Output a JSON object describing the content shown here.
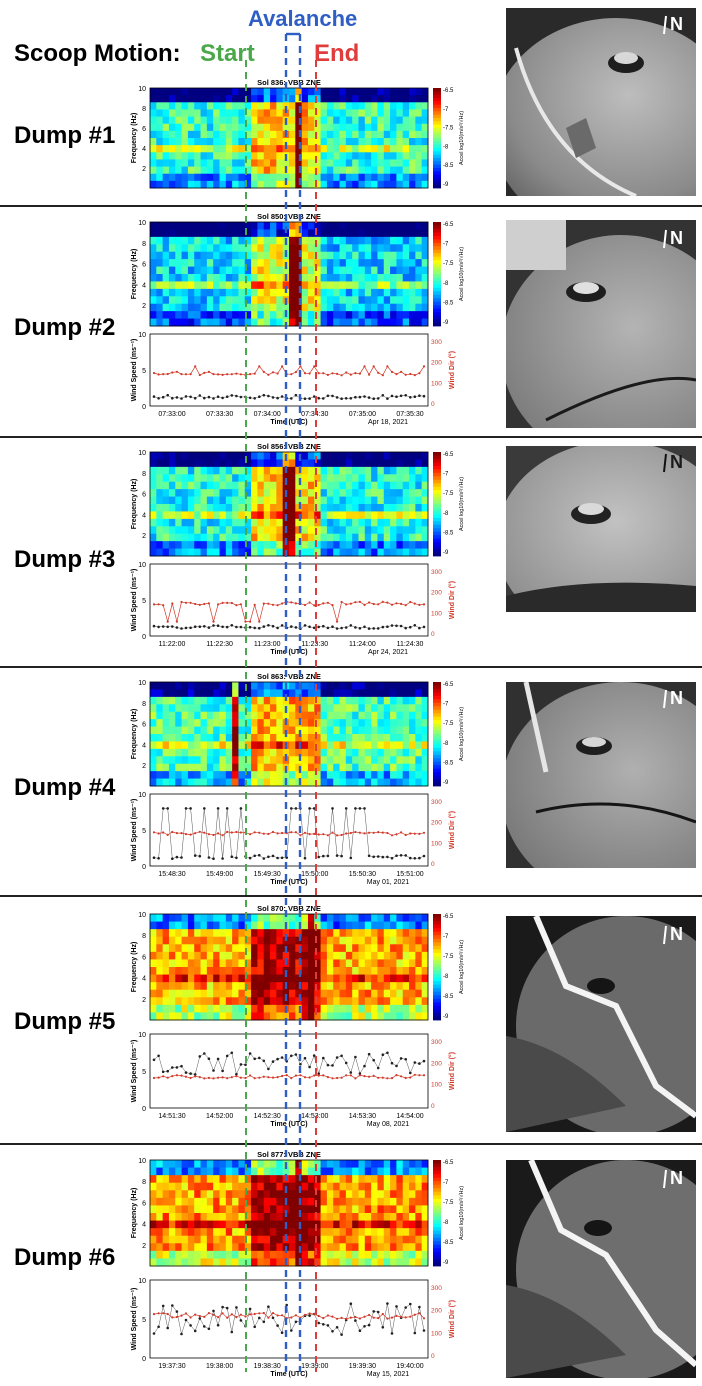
{
  "header": {
    "scoop_motion": "Scoop Motion:",
    "start": "Start",
    "avalanche": "Avalanche",
    "end": "End",
    "start_color": "#4aa84a",
    "avalanche_color": "#2f5fc4",
    "end_color": "#e03c3c"
  },
  "labels": {
    "frequency": "Frequency (Hz)",
    "accel": "Accel log10(m/s²/√Hz)",
    "wind_speed": "Wind Speed (ms⁻¹)",
    "wind_dir": "Wind Dir (°)",
    "time": "Time (UTC)"
  },
  "chart_data": {
    "type": "heatmap",
    "colorbar_ticks": [
      "-6.5",
      "-7",
      "-7.5",
      "-8",
      "-8.5",
      "-9"
    ],
    "freq_ticks": [
      "10",
      "8",
      "6",
      "4",
      "2"
    ],
    "wind_speed_ticks": [
      "10",
      "5",
      "0"
    ],
    "wind_dir_ticks": [
      "300",
      "200",
      "100",
      "0"
    ],
    "north_label": "N",
    "panels": [
      {
        "dump": "Dump #1",
        "title": "Sol 836: VBB ZNE",
        "has_wind": false,
        "time_ticks": [],
        "date": ""
      },
      {
        "dump": "Dump #2",
        "title": "Sol 850: VBB ZNE",
        "has_wind": true,
        "time_ticks": [
          "07:33:00",
          "07:33:30",
          "07:34:00",
          "07:34:30",
          "07:35:00",
          "07:35:30"
        ],
        "date": "Apr 18, 2021"
      },
      {
        "dump": "Dump #3",
        "title": "Sol 856: VBB ZNE",
        "has_wind": true,
        "time_ticks": [
          "11:22:00",
          "11:22:30",
          "11:23:00",
          "11:23:30",
          "11:24:00",
          "11:24:30"
        ],
        "date": "Apr 24, 2021"
      },
      {
        "dump": "Dump #4",
        "title": "Sol 863: VBB ZNE",
        "has_wind": true,
        "time_ticks": [
          "15:48:30",
          "15:49:00",
          "15:49:30",
          "15:50:00",
          "15:50:30",
          "15:51:00"
        ],
        "date": "May 01, 2021"
      },
      {
        "dump": "Dump #5",
        "title": "Sol 870: VBB ZNE",
        "has_wind": true,
        "time_ticks": [
          "14:51:30",
          "14:52:00",
          "14:52:30",
          "14:53:00",
          "14:53:30",
          "14:54:00"
        ],
        "date": "May 08, 2021"
      },
      {
        "dump": "Dump #6",
        "title": "Sol 877: VBB ZNE",
        "has_wind": true,
        "time_ticks": [
          "19:37:30",
          "19:38:00",
          "19:38:30",
          "19:39:00",
          "19:39:30",
          "19:40:00"
        ],
        "date": "May 15, 2021"
      }
    ]
  }
}
